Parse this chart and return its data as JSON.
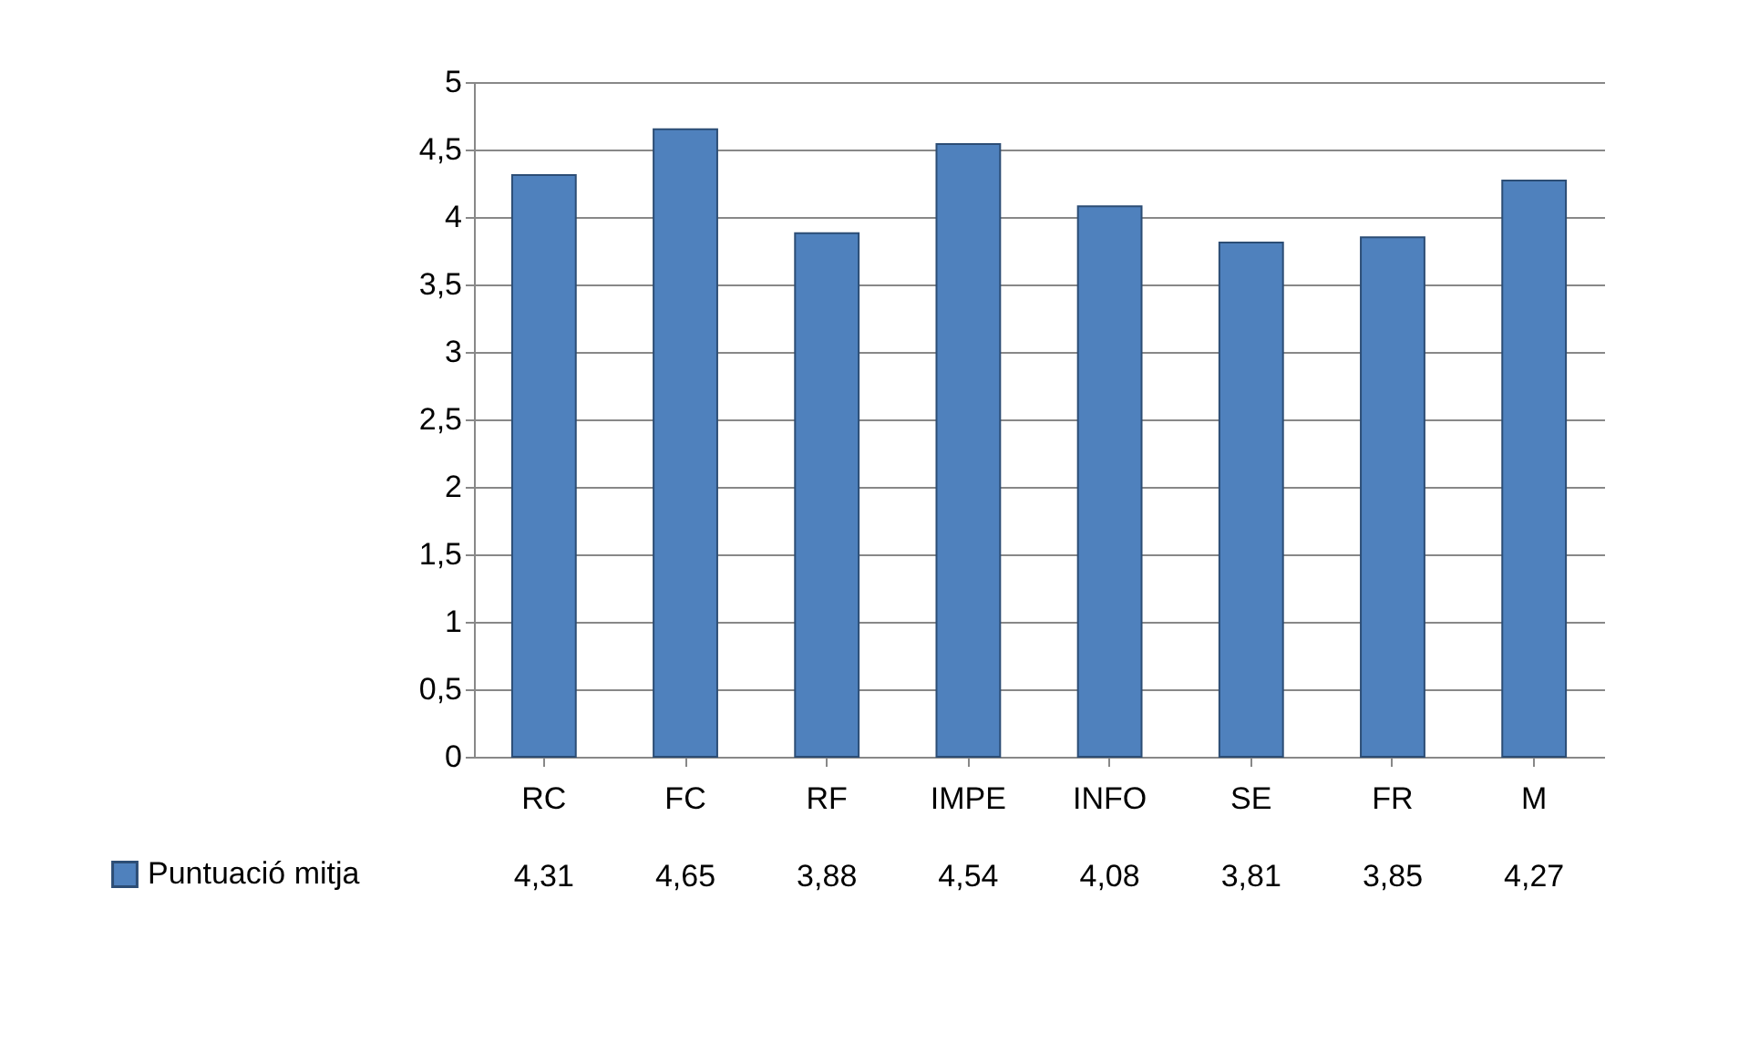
{
  "chart_data": {
    "type": "bar",
    "categories": [
      "RC",
      "FC",
      "RF",
      "IMPE",
      "INFO",
      "SE",
      "FR",
      "M"
    ],
    "series": [
      {
        "name": "Puntuació mitja",
        "color": "#4f81bd",
        "values": [
          4.31,
          4.65,
          3.88,
          4.54,
          4.08,
          3.81,
          3.85,
          4.27
        ],
        "value_labels": [
          "4,31",
          "4,65",
          "3,88",
          "4,54",
          "4,08",
          "3,81",
          "3,85",
          "4,27"
        ]
      }
    ],
    "ylim": [
      0,
      5
    ],
    "yticks": [
      0,
      {
        "value": 0.5,
        "label": "0,5"
      },
      1,
      {
        "value": 1.5,
        "label": "1,5"
      },
      2,
      {
        "value": 2.5,
        "label": "2,5"
      },
      3,
      {
        "value": 3.5,
        "label": "3,5"
      },
      4,
      {
        "value": 4.5,
        "label": "4,5"
      },
      5
    ],
    "grid": "y",
    "legend": "bottom left"
  }
}
